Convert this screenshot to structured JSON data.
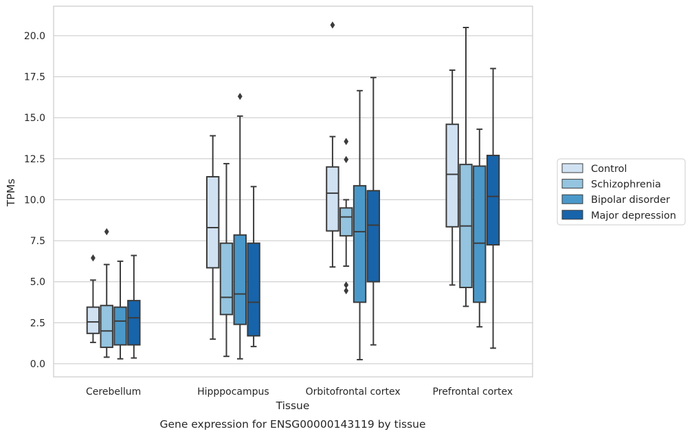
{
  "chart_data": {
    "type": "box",
    "caption": "Gene expression for ENSG00000143119 by tissue",
    "xlabel": "Tissue",
    "ylabel": "TPMs",
    "ylim": [
      -0.8,
      21.8
    ],
    "yticks": [
      "0.0",
      "2.5",
      "5.0",
      "7.5",
      "10.0",
      "12.5",
      "15.0",
      "17.5",
      "20.0"
    ],
    "grid": "horizontal",
    "legend_position": "right",
    "categories": [
      "Cerebellum",
      "Hipppocampus",
      "Orbitofrontal cortex",
      "Prefrontal cortex"
    ],
    "series": [
      {
        "name": "Control",
        "color": "#d0e1f2",
        "boxes": [
          {
            "whislo": 1.3,
            "q1": 1.85,
            "med": 2.55,
            "q3": 3.45,
            "whishi": 5.1,
            "fliers": [
              6.45
            ]
          },
          {
            "whislo": 1.5,
            "q1": 5.85,
            "med": 8.3,
            "q3": 11.4,
            "whishi": 13.9,
            "fliers": []
          },
          {
            "whislo": 5.9,
            "q1": 8.1,
            "med": 10.4,
            "q3": 12.0,
            "whishi": 13.85,
            "fliers": [
              20.65
            ]
          },
          {
            "whislo": 4.8,
            "q1": 8.35,
            "med": 11.55,
            "q3": 14.6,
            "whishi": 17.9,
            "fliers": []
          }
        ]
      },
      {
        "name": "Schizophrenia",
        "color": "#94c4df",
        "boxes": [
          {
            "whislo": 0.4,
            "q1": 1.0,
            "med": 2.0,
            "q3": 3.55,
            "whishi": 6.05,
            "fliers": [
              8.05
            ]
          },
          {
            "whislo": 0.45,
            "q1": 3.0,
            "med": 4.05,
            "q3": 7.35,
            "whishi": 12.2,
            "fliers": []
          },
          {
            "whislo": 5.95,
            "q1": 7.8,
            "med": 8.95,
            "q3": 9.5,
            "whishi": 10.0,
            "fliers": [
              13.55,
              12.45,
              4.8,
              4.45
            ]
          },
          {
            "whislo": 3.5,
            "q1": 4.65,
            "med": 8.4,
            "q3": 12.15,
            "whishi": 20.5,
            "fliers": []
          }
        ]
      },
      {
        "name": "Bipolar disorder",
        "color": "#4a98c9",
        "boxes": [
          {
            "whislo": 0.3,
            "q1": 1.15,
            "med": 2.6,
            "q3": 3.45,
            "whishi": 6.25,
            "fliers": []
          },
          {
            "whislo": 0.3,
            "q1": 2.4,
            "med": 4.25,
            "q3": 7.85,
            "whishi": 15.1,
            "fliers": [
              16.3
            ]
          },
          {
            "whislo": 0.25,
            "q1": 3.75,
            "med": 8.05,
            "q3": 10.85,
            "whishi": 16.65,
            "fliers": []
          },
          {
            "whislo": 2.25,
            "q1": 3.75,
            "med": 7.35,
            "q3": 12.05,
            "whishi": 14.3,
            "fliers": []
          }
        ]
      },
      {
        "name": "Major depression",
        "color": "#1764ab",
        "boxes": [
          {
            "whislo": 0.35,
            "q1": 1.15,
            "med": 2.8,
            "q3": 3.85,
            "whishi": 6.6,
            "fliers": []
          },
          {
            "whislo": 1.05,
            "q1": 1.7,
            "med": 3.75,
            "q3": 7.35,
            "whishi": 10.8,
            "fliers": []
          },
          {
            "whislo": 1.15,
            "q1": 5.0,
            "med": 8.45,
            "q3": 10.55,
            "whishi": 17.45,
            "fliers": []
          },
          {
            "whislo": 0.95,
            "q1": 7.25,
            "med": 10.2,
            "q3": 12.7,
            "whishi": 18.0,
            "fliers": []
          }
        ]
      }
    ]
  }
}
